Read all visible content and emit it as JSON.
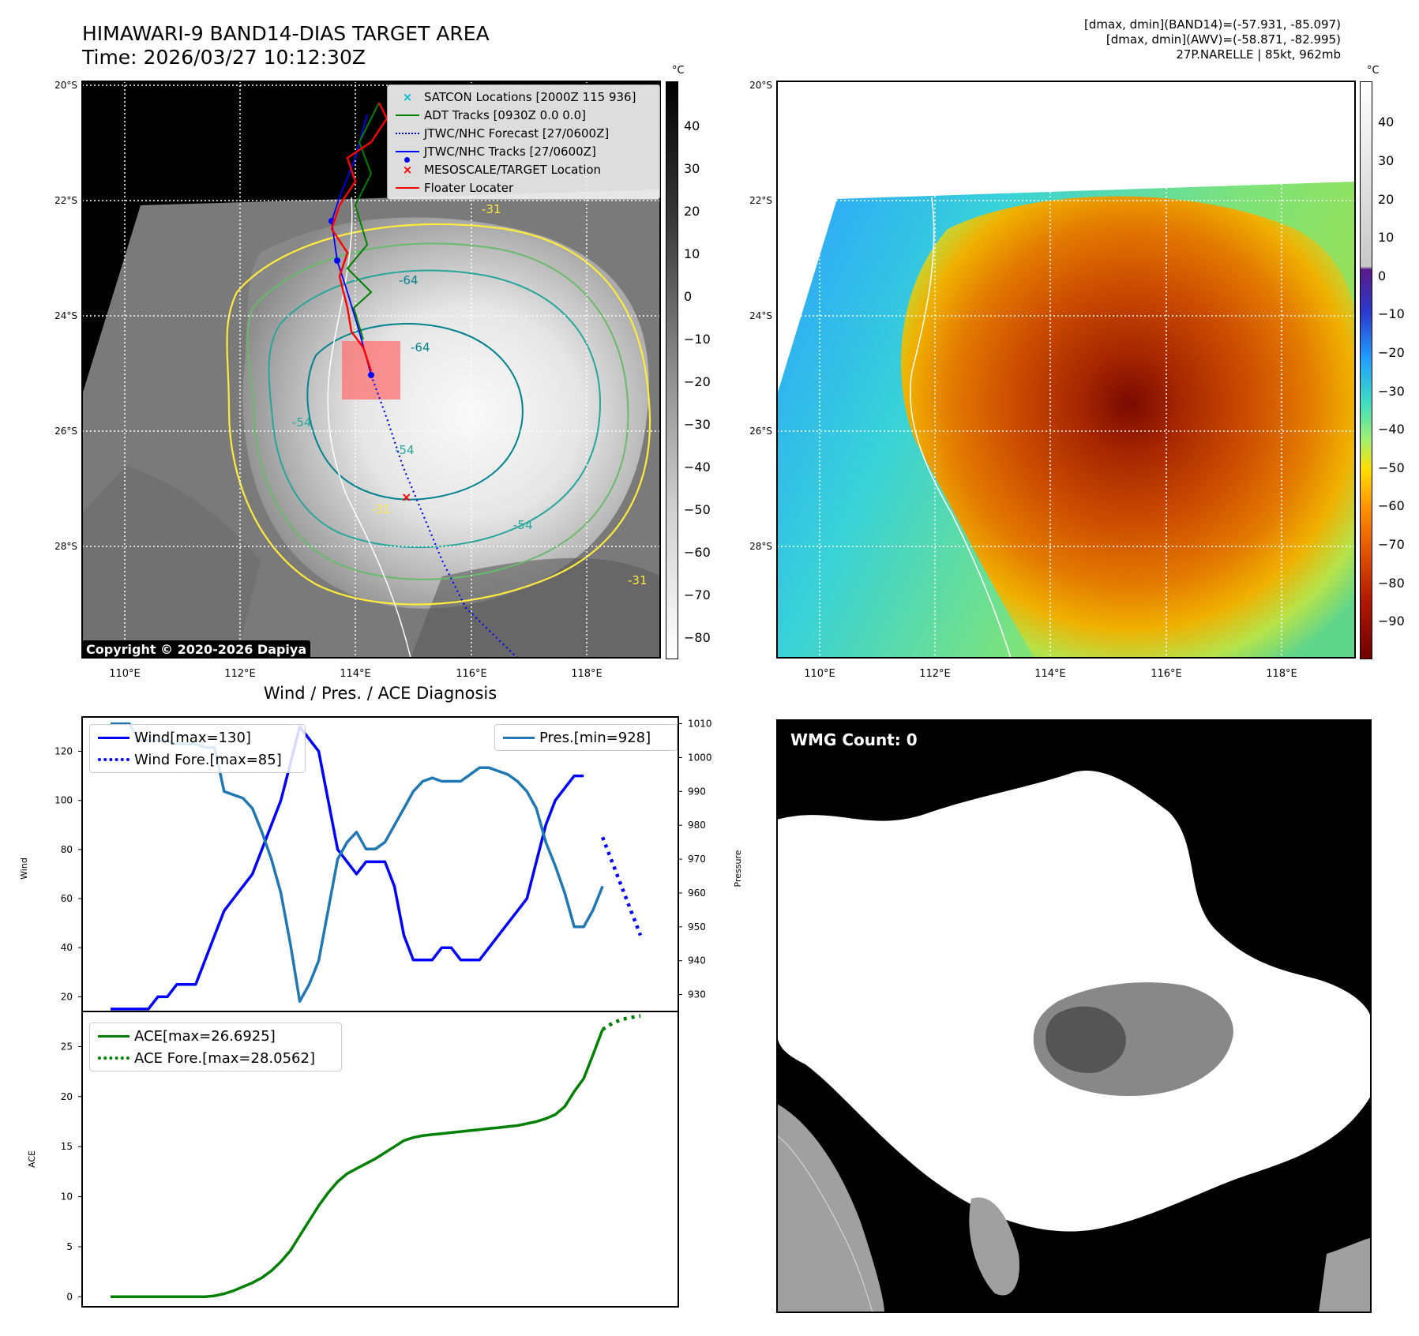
{
  "header": {
    "title_line1": "HIMAWARI-9 BAND14-DIAS TARGET AREA",
    "title_line2": "Time: 2026/03/27 10:12:30Z",
    "info_line1": "[dmax, dmin](BAND14)=(-57.931, -85.097)",
    "info_line2": "[dmax, dmin](AWV)=(-58.871, -82.995)",
    "info_line3": "27P.NARELLE | 85kt, 962mb"
  },
  "map_left": {
    "lat_labels": [
      "20°S",
      "22°S",
      "24°S",
      "26°S",
      "28°S"
    ],
    "lon_labels": [
      "110°E",
      "112°E",
      "114°E",
      "116°E",
      "118°E"
    ],
    "legend": [
      {
        "label": "SATCON Locations [2000Z 115 936]",
        "color": "#00bcd4",
        "marker": "x"
      },
      {
        "label": "ADT Tracks [0930Z 0.0 0.0]",
        "color": "#008000",
        "marker": "line"
      },
      {
        "label": "JTWC/NHC Forecast [27/0600Z]",
        "color": "#0000ff",
        "marker": "dotted"
      },
      {
        "label": "JTWC/NHC Tracks [27/0600Z]",
        "color": "#0000ff",
        "marker": "line-dot"
      },
      {
        "label": "MESOSCALE/TARGET Location",
        "color": "#ff0000",
        "marker": "x"
      },
      {
        "label": "Floater Locater",
        "color": "#ff0000",
        "marker": "line"
      }
    ],
    "contour_labels": [
      "-64",
      "-64",
      "-54",
      "-54",
      "-54",
      "-31",
      "-31",
      "-31"
    ],
    "copyright": "Copyright © 2020-2026 Dapiya",
    "colorbar_unit": "°C",
    "colorbar_ticks": [
      "40",
      "30",
      "20",
      "10",
      "0",
      "−10",
      "−20",
      "−30",
      "−40",
      "−50",
      "−60",
      "−70",
      "−80"
    ]
  },
  "map_right": {
    "lat_labels": [
      "20°S",
      "22°S",
      "24°S",
      "26°S",
      "28°S"
    ],
    "lon_labels": [
      "110°E",
      "112°E",
      "114°E",
      "116°E",
      "118°E"
    ],
    "colorbar_unit": "°C",
    "colorbar_ticks": [
      "40",
      "30",
      "20",
      "10",
      "0",
      "−10",
      "−20",
      "−30",
      "−40",
      "−50",
      "−60",
      "−70",
      "−80",
      "−90"
    ]
  },
  "diagnosis": {
    "title": "Wind / Pres. / ACE Diagnosis"
  },
  "wmg": {
    "badge": "WMG Count: 0"
  },
  "colors": {
    "wind": "#0000ff",
    "pressure": "#1f77b4",
    "ace": "#008000"
  },
  "chart_data": [
    {
      "type": "line",
      "title": "Wind / Pres. / ACE Diagnosis",
      "ylabel": "Wind",
      "y2label": "Pressure",
      "ylim": [
        14,
        134
      ],
      "y_ticks": [
        20,
        40,
        60,
        80,
        100,
        120
      ],
      "y2lim": [
        925,
        1012
      ],
      "y2_ticks": [
        930,
        940,
        950,
        960,
        970,
        980,
        990,
        1000,
        1010
      ],
      "series": [
        {
          "name": "Wind[max=130]",
          "axis": "left",
          "style": "solid",
          "x": [
            0,
            1,
            2,
            3,
            4,
            5,
            6,
            7,
            8,
            9,
            10,
            11,
            12,
            13,
            14,
            15,
            16,
            17,
            18,
            19,
            20,
            21,
            22,
            23,
            24,
            25,
            26,
            27,
            28,
            29,
            30,
            31,
            32,
            33,
            34,
            35,
            36,
            37,
            38,
            39,
            40,
            41,
            42,
            43,
            44,
            45,
            46,
            47,
            48,
            49,
            50
          ],
          "values": [
            15,
            15,
            15,
            15,
            15,
            20,
            20,
            25,
            25,
            25,
            35,
            45,
            55,
            60,
            65,
            70,
            80,
            90,
            100,
            115,
            130,
            125,
            120,
            100,
            80,
            75,
            70,
            75,
            75,
            75,
            65,
            45,
            35,
            35,
            35,
            40,
            40,
            35,
            35,
            35,
            40,
            45,
            50,
            55,
            60,
            75,
            90,
            100,
            105,
            110,
            110
          ]
        },
        {
          "name": "Wind Fore.[max=85]",
          "axis": "left",
          "style": "dotted",
          "x": [
            52,
            53,
            54,
            55,
            56
          ],
          "values": [
            85,
            75,
            65,
            55,
            45
          ]
        },
        {
          "name": "Pres.[min=928]",
          "axis": "right",
          "style": "solid",
          "x": [
            0,
            1,
            2,
            3,
            4,
            5,
            6,
            7,
            8,
            9,
            10,
            11,
            12,
            13,
            14,
            15,
            16,
            17,
            18,
            19,
            20,
            21,
            22,
            23,
            24,
            25,
            26,
            27,
            28,
            29,
            30,
            31,
            32,
            33,
            34,
            35,
            36,
            37,
            38,
            39,
            40,
            41,
            42,
            43,
            44,
            45,
            46,
            47,
            48,
            49,
            50,
            51,
            52
          ],
          "values": [
            1010,
            1010,
            1010,
            1005,
            1005,
            1005,
            1005,
            1004,
            1004,
            1004,
            1003,
            1003,
            990,
            989,
            988,
            985,
            978,
            970,
            960,
            945,
            928,
            933,
            940,
            955,
            970,
            975,
            978,
            973,
            973,
            975,
            980,
            985,
            990,
            993,
            994,
            993,
            993,
            993,
            995,
            997,
            997,
            996,
            995,
            993,
            990,
            985,
            975,
            968,
            960,
            950,
            950,
            955,
            962
          ]
        },
        {
          "name": "ACE[max=26.6925]",
          "axis": "ace",
          "style": "solid",
          "x": [
            0,
            1,
            2,
            3,
            4,
            5,
            6,
            7,
            8,
            9,
            10,
            11,
            12,
            13,
            14,
            15,
            16,
            17,
            18,
            19,
            20,
            21,
            22,
            23,
            24,
            25,
            26,
            27,
            28,
            29,
            30,
            31,
            32,
            33,
            34,
            35,
            36,
            37,
            38,
            39,
            40,
            41,
            42,
            43,
            44,
            45,
            46,
            47,
            48,
            49,
            50,
            51,
            52
          ],
          "values": [
            0,
            0,
            0,
            0,
            0,
            0,
            0,
            0,
            0,
            0,
            0,
            0.1,
            0.3,
            0.6,
            1,
            1.4,
            1.9,
            2.6,
            3.5,
            4.6,
            6.1,
            7.6,
            9.1,
            10.4,
            11.5,
            12.3,
            12.8,
            13.3,
            13.8,
            14.4,
            15,
            15.6,
            15.9,
            16.1,
            16.2,
            16.3,
            16.4,
            16.5,
            16.6,
            16.7,
            16.8,
            16.9,
            17.0,
            17.1,
            17.3,
            17.5,
            17.8,
            18.2,
            19,
            20.5,
            21.8,
            24.2,
            26.7
          ]
        },
        {
          "name": "ACE Fore.[max=28.0562]",
          "axis": "ace",
          "style": "dotted",
          "x": [
            52,
            53,
            54,
            55,
            56
          ],
          "values": [
            26.7,
            27.3,
            27.7,
            27.9,
            28.06
          ]
        }
      ],
      "ace_ylabel": "ACE",
      "ace_ylim": [
        -1,
        28.5
      ],
      "ace_ticks": [
        0,
        5,
        10,
        15,
        20,
        25
      ]
    }
  ]
}
